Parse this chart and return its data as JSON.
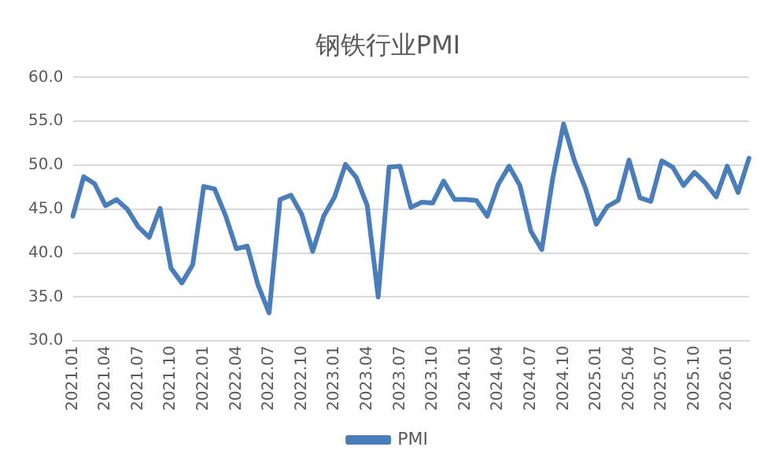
{
  "chart_data": {
    "type": "line",
    "title": "钢铁行业PMI",
    "categories": [
      "2021.01",
      null,
      null,
      "2021.04",
      null,
      null,
      "2021.07",
      null,
      null,
      "2021.10",
      null,
      null,
      "2022.01",
      null,
      null,
      "2022.04",
      null,
      null,
      "2022.07",
      null,
      null,
      "2022.10",
      null,
      null,
      "2023.01",
      null,
      null,
      "2023.04",
      null,
      null,
      "2023.07",
      null,
      null,
      "2023.10",
      null,
      null,
      "2024.01",
      null,
      null,
      "2024.04",
      null,
      null,
      "2024.07",
      null,
      null,
      "2024.10",
      null,
      null,
      "2025.01",
      null,
      null,
      "2025.04",
      null,
      null,
      "2025.07",
      null,
      null,
      "2025.10",
      null,
      null,
      "2026.01",
      null,
      null
    ],
    "series": [
      {
        "name": "PMI",
        "color": "#4a7ebb",
        "values": [
          44.2,
          48.7,
          47.9,
          45.4,
          46.1,
          45.0,
          43.0,
          41.8,
          45.1,
          38.3,
          36.6,
          38.7,
          47.6,
          47.3,
          44.3,
          40.5,
          40.8,
          36.3,
          33.2,
          46.1,
          46.6,
          44.4,
          40.2,
          44.2,
          46.4,
          50.1,
          48.6,
          45.4,
          35.0,
          49.8,
          49.9,
          45.2,
          45.8,
          45.7,
          48.2,
          46.1,
          46.1,
          46.0,
          44.2,
          47.8,
          49.9,
          47.7,
          42.5,
          40.4,
          48.5,
          54.7,
          50.5,
          47.4,
          43.3,
          45.3,
          46.0,
          50.6,
          46.3,
          45.9,
          50.5,
          49.8,
          47.7,
          49.2,
          48.0,
          46.4,
          49.9,
          46.9,
          50.8
        ]
      }
    ],
    "ylim": [
      30,
      60
    ],
    "yticks": [
      {
        "value": 30,
        "label": "30.0"
      },
      {
        "value": 35,
        "label": "35.0"
      },
      {
        "value": 40,
        "label": "40.0"
      },
      {
        "value": 45,
        "label": "45.0"
      },
      {
        "value": 50,
        "label": "50.0"
      },
      {
        "value": 55,
        "label": "55.0"
      },
      {
        "value": 60,
        "label": "60.0"
      }
    ],
    "grid": "y",
    "legend": "bottom",
    "marker": "none",
    "line_style": "solid"
  }
}
